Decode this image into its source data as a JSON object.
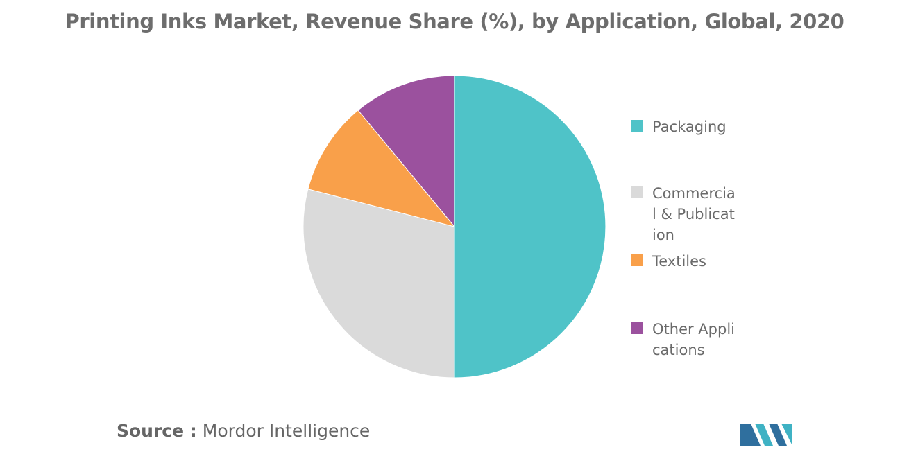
{
  "chart_data": {
    "type": "pie",
    "title": "Printing Inks Market, Revenue Share (%), by Application, Global, 2020",
    "legend_position": "right",
    "start_angle_deg": 0,
    "direction": "clockwise",
    "slices": [
      {
        "label": "Packaging",
        "value": 50,
        "color": "#4fc3c8"
      },
      {
        "label": "Commercial & Publication",
        "value": 29,
        "color": "#dadada"
      },
      {
        "label": "Textiles",
        "value": 10,
        "color": "#f9a04a"
      },
      {
        "label": "Other Applications",
        "value": 11,
        "color": "#9b519e"
      }
    ]
  },
  "source": {
    "label": "Source :",
    "value": "Mordor Intelligence"
  },
  "logo": {
    "icon": "mordor-intelligence-logo-icon",
    "colors": [
      "#2f6f9e",
      "#3fb2c4"
    ]
  }
}
